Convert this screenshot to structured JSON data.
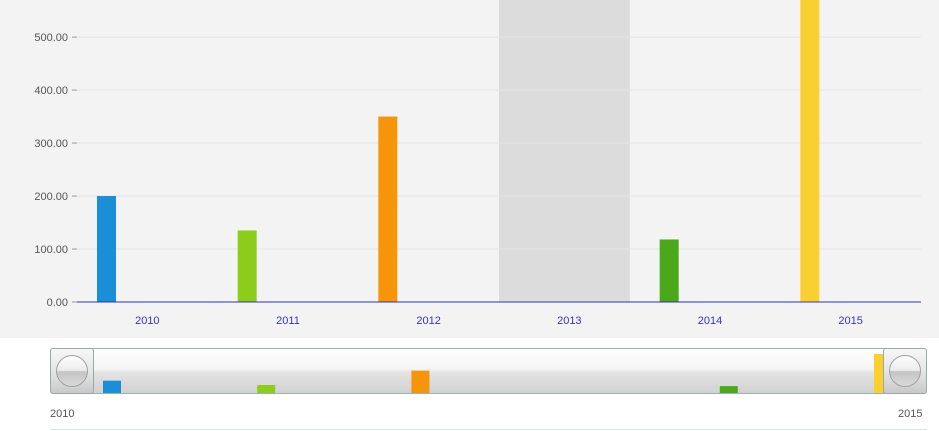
{
  "chart_data": {
    "type": "bar",
    "categories": [
      "2010",
      "2011",
      "2012",
      "2013",
      "2014",
      "2015"
    ],
    "values": [
      200,
      135,
      350,
      0,
      118,
      600
    ],
    "colors": [
      "#1a8fd8",
      "#8ccc1a",
      "#f5960a",
      "#dcdcdc",
      "#4aa81a",
      "#f9d030"
    ],
    "highlighted_category": "2013",
    "y_ticks": [
      "0.00",
      "100.00",
      "200.00",
      "300.00",
      "400.00",
      "500.00"
    ],
    "ylim": [
      0,
      570
    ],
    "grid": true,
    "xlabel": "",
    "ylabel": "",
    "title": ""
  },
  "navigator": {
    "start_label": "2010",
    "end_label": "2015"
  },
  "colors": {
    "plot_background": "#f3f3f3",
    "axis_line": "#3333aa",
    "category_label": "#3333cc",
    "tick_label": "#555555",
    "highlight_band": "#dcdcdc"
  }
}
